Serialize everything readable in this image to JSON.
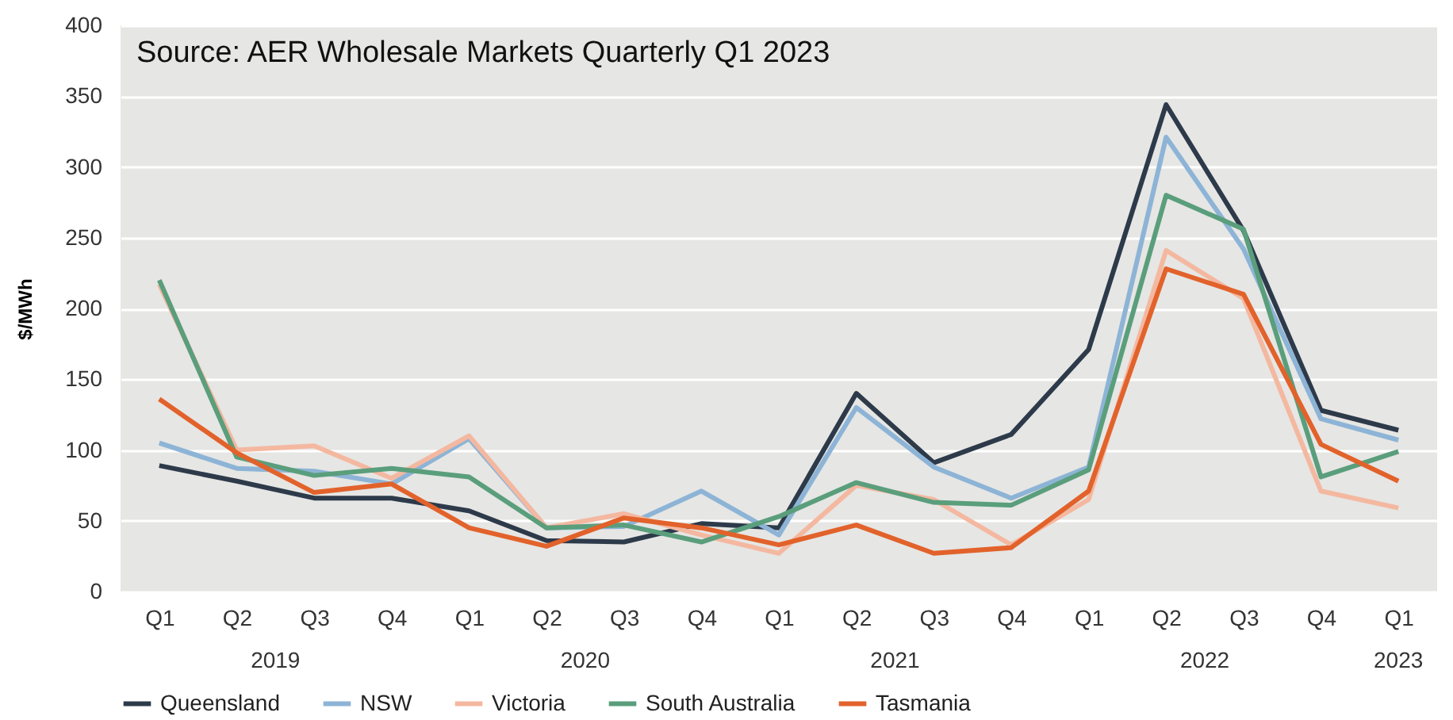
{
  "chart_data": {
    "type": "line",
    "ylabel": "$/MWh",
    "annotations": [
      "Source: AER Wholesale Markets Quarterly Q1 2023",
      "2019",
      "2020",
      "2021",
      "2022",
      "2023"
    ],
    "categories": [
      "Q1",
      "Q2",
      "Q3",
      "Q4",
      "Q1",
      "Q2",
      "Q3",
      "Q4",
      "Q1",
      "Q2",
      "Q3",
      "Q4",
      "Q1",
      "Q2",
      "Q3",
      "Q4",
      "Q1"
    ],
    "series": [
      {
        "name": "Queensland",
        "color": "#2d3a4a",
        "values": [
          89,
          78,
          66,
          66,
          57,
          36,
          35,
          48,
          45,
          140,
          91,
          111,
          171,
          344,
          255,
          128,
          114
        ]
      },
      {
        "name": "NSW",
        "color": "#8db4d6",
        "values": [
          105,
          87,
          85,
          76,
          108,
          45,
          46,
          71,
          40,
          130,
          88,
          66,
          88,
          321,
          242,
          122,
          107
        ]
      },
      {
        "name": "Victoria",
        "color": "#f4b8a0",
        "values": [
          217,
          100,
          103,
          80,
          110,
          45,
          55,
          40,
          27,
          75,
          65,
          33,
          65,
          241,
          207,
          71,
          59
        ]
      },
      {
        "name": "South Australia",
        "color": "#5a9e7c",
        "values": [
          220,
          95,
          82,
          87,
          81,
          45,
          47,
          35,
          53,
          77,
          63,
          61,
          86,
          280,
          256,
          81,
          99
        ]
      },
      {
        "name": "Tasmania",
        "color": "#e2622b",
        "values": [
          136,
          98,
          70,
          76,
          45,
          32,
          52,
          45,
          33,
          47,
          27,
          31,
          71,
          228,
          210,
          104,
          78
        ]
      }
    ],
    "ylim": [
      0,
      400
    ],
    "yticks": [
      0,
      50,
      100,
      150,
      200,
      250,
      300,
      350,
      400
    ],
    "grid": "y",
    "legend": "bottom",
    "marker": "none",
    "line_style": "solid"
  }
}
